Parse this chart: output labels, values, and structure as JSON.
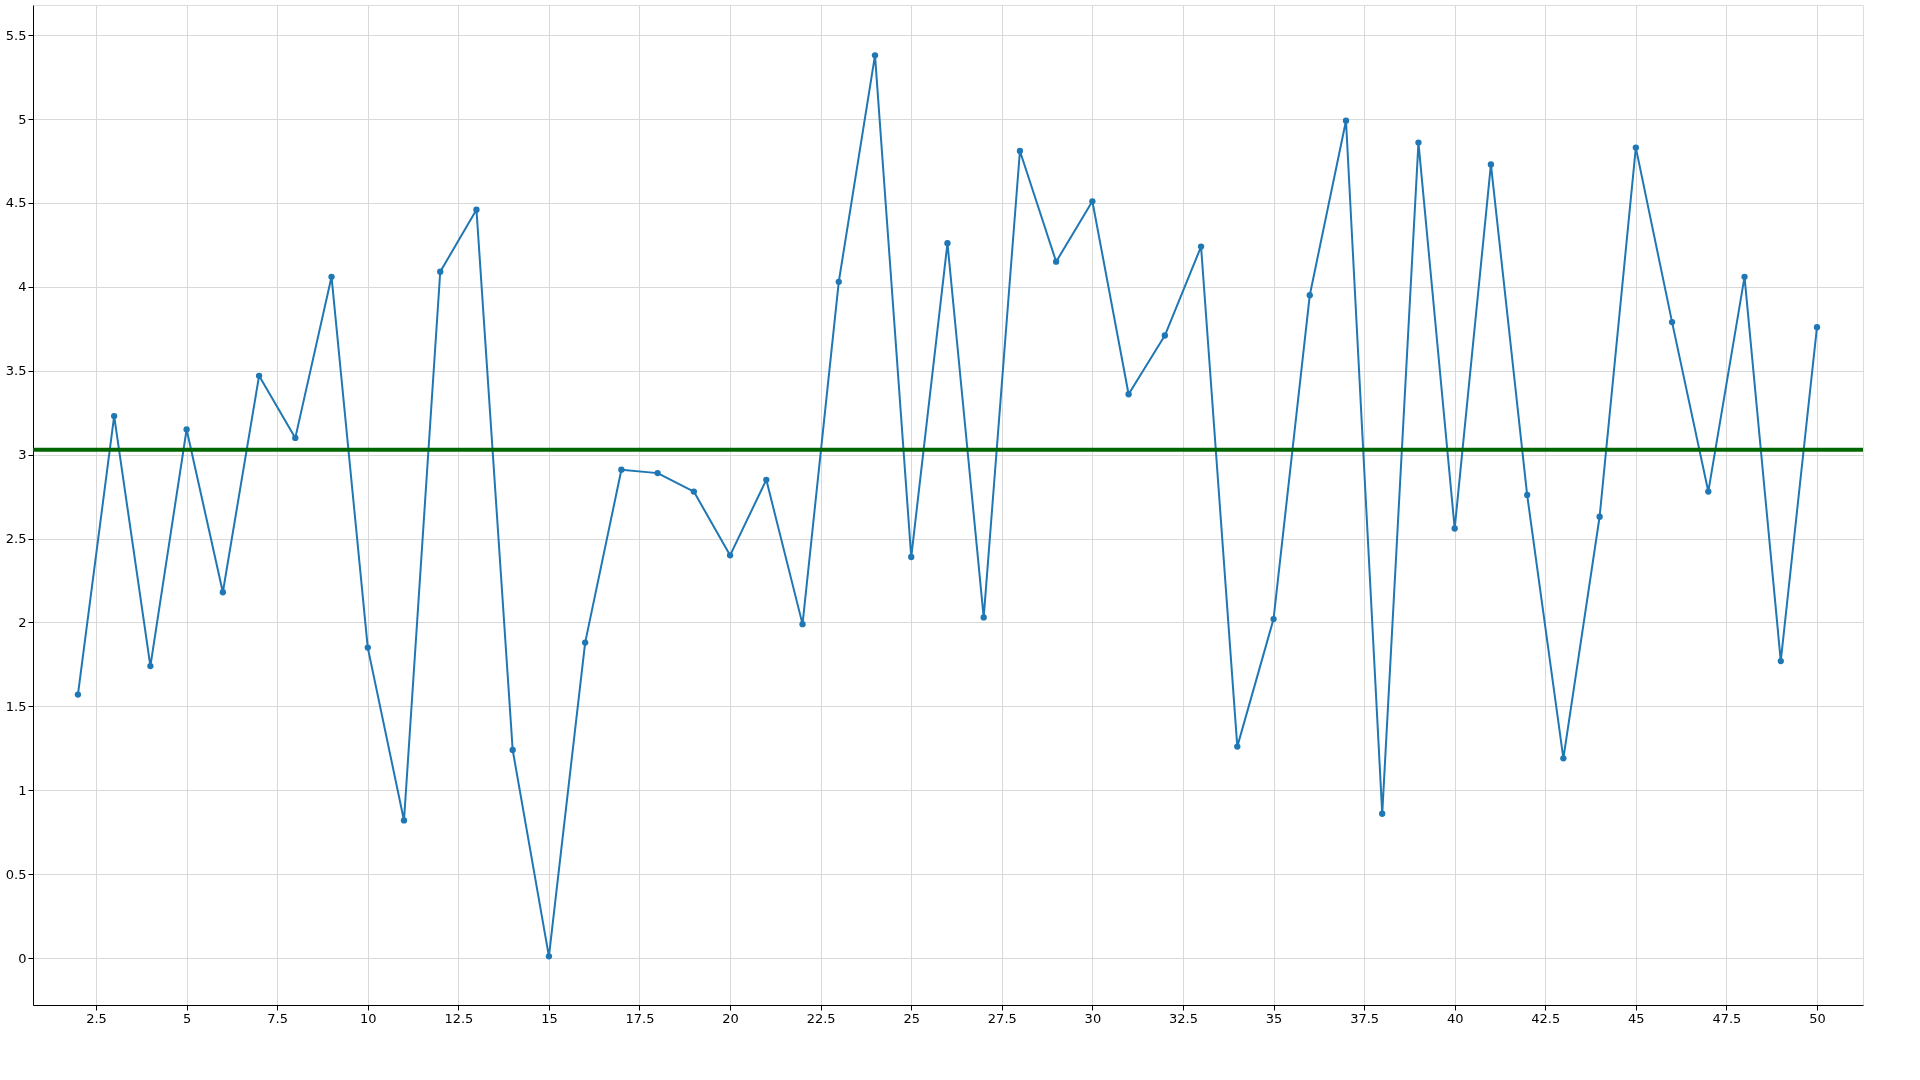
{
  "chart_data": {
    "type": "line",
    "x": [
      2,
      3,
      4,
      5,
      6,
      7,
      8,
      9,
      10,
      11,
      12,
      13,
      14,
      15,
      16,
      17,
      18,
      19,
      20,
      21,
      22,
      23,
      24,
      25,
      26,
      27,
      28,
      29,
      30,
      31,
      32,
      33,
      34,
      35,
      36,
      37,
      38,
      39,
      40,
      41,
      42,
      43,
      44,
      45,
      46,
      47,
      48,
      49,
      50
    ],
    "series": [
      {
        "color": "#1f77b4",
        "values": [
          1.57,
          3.23,
          1.74,
          3.15,
          2.18,
          3.47,
          3.1,
          4.06,
          1.85,
          0.82,
          4.09,
          4.46,
          1.24,
          0.01,
          1.88,
          2.91,
          2.89,
          2.78,
          2.4,
          2.85,
          1.99,
          4.03,
          5.38,
          2.39,
          4.26,
          2.03,
          4.81,
          4.15,
          4.51,
          3.36,
          3.71,
          4.24,
          1.26,
          2.02,
          3.95,
          4.99,
          0.86,
          4.86,
          2.56,
          4.73,
          2.76,
          1.19,
          2.63,
          4.83,
          3.79,
          2.78,
          4.06,
          1.77,
          3.76
        ]
      }
    ],
    "xlim": [
      0.76,
      51.27
    ],
    "ylim": [
      -0.28,
      5.68
    ],
    "xticks": [
      2.5,
      5,
      7.5,
      10,
      12.5,
      15,
      17.5,
      20,
      22.5,
      25,
      27.5,
      30,
      32.5,
      35,
      37.5,
      40,
      42.5,
      45,
      47.5,
      50
    ],
    "yticks": [
      0,
      0.5,
      1,
      1.5,
      2,
      2.5,
      3,
      3.5,
      4,
      4.5,
      5,
      5.5
    ],
    "ref_lines": [
      {
        "axis": "y",
        "value": 3.03,
        "color": "#006400"
      }
    ],
    "grid": true,
    "marker": "circle",
    "line_style": "solid"
  }
}
